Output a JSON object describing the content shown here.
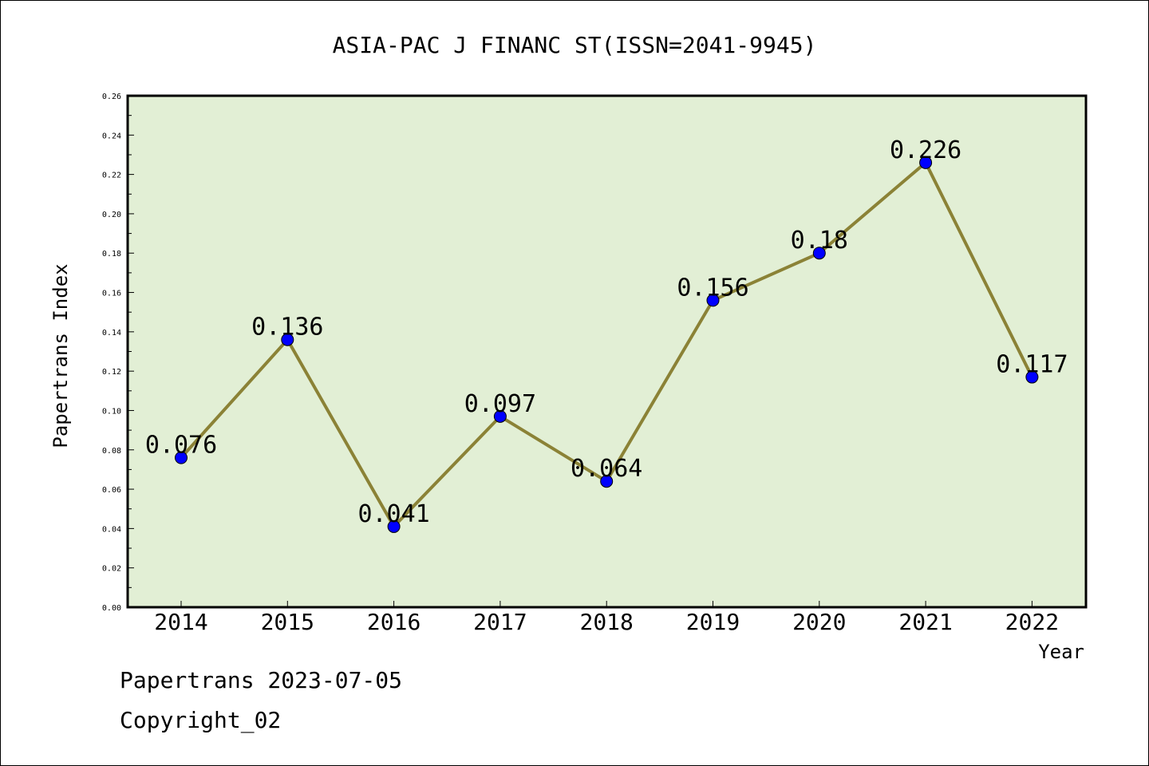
{
  "chart_data": {
    "type": "line",
    "title": "ASIA-PAC J FINANC ST(ISSN=2041-9945)",
    "xlabel": "Year",
    "ylabel": "Papertrans Index",
    "categories": [
      "2014",
      "2015",
      "2016",
      "2017",
      "2018",
      "2019",
      "2020",
      "2021",
      "2022"
    ],
    "values": [
      0.076,
      0.136,
      0.041,
      0.097,
      0.064,
      0.156,
      0.18,
      0.226,
      0.117
    ],
    "data_labels": [
      "0.076",
      "0.136",
      "0.041",
      "0.097",
      "0.064",
      "0.156",
      "0.18",
      "0.226",
      "0.117"
    ],
    "ylim": [
      0,
      0.26
    ],
    "yticks": [
      "0.00",
      "0.02",
      "0.04",
      "0.06",
      "0.08",
      "0.10",
      "0.12",
      "0.14",
      "0.16",
      "0.18",
      "0.20",
      "0.22",
      "0.24",
      "0.26"
    ],
    "grid": false,
    "colors": {
      "plot_background": "#e2efd5",
      "line": "#8b8236",
      "marker": "#0000ff"
    }
  },
  "footer": {
    "line1": "Papertrans 2023-07-05",
    "line2": "Copyright_02"
  }
}
